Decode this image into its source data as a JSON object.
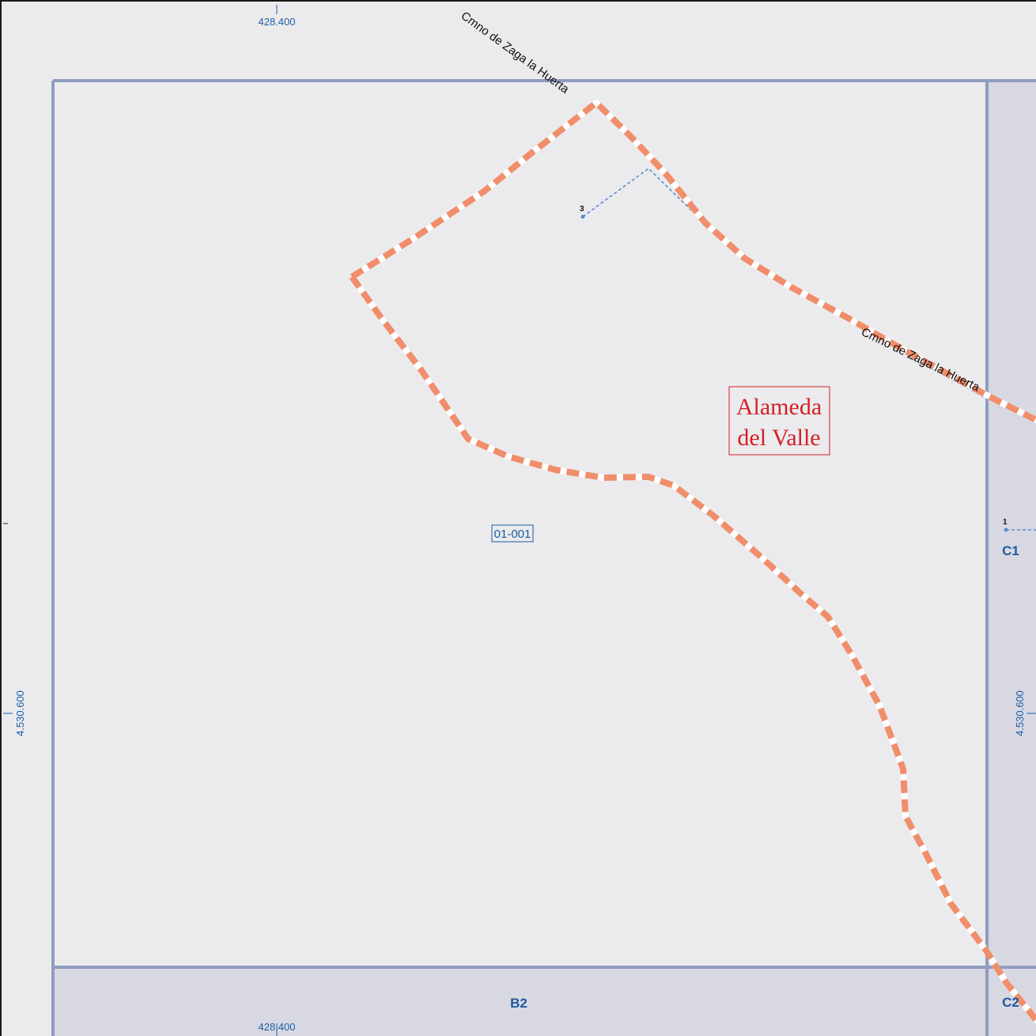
{
  "map": {
    "colors": {
      "background": "#ebebed",
      "adjacent_sheet": "#d8d8e2",
      "sheet_border": "#8f9dc0",
      "boundary_orange": "#f08e6c",
      "boundary_white": "#ffffff",
      "parcel_dashed": "#5b8ccc",
      "coordinate_text": "#1f5fa8",
      "town_label": "#d32027"
    },
    "coordinates": {
      "top_easting": "428.400",
      "bottom_easting": "428.400",
      "left_northing": "4.530.600",
      "right_northing": "4.530.600"
    },
    "roads": {
      "top_label": "Cmno de Zaga la Huerta",
      "right_label": "Cmno de Zaga la Huerta"
    },
    "town": {
      "line1": "Alameda",
      "line2": "del Valle"
    },
    "parcel": {
      "id": "01-001"
    },
    "sheets": {
      "b2": "B2",
      "c1": "C1",
      "c2": "C2"
    },
    "points": {
      "p3": "3",
      "p1": "1"
    }
  }
}
